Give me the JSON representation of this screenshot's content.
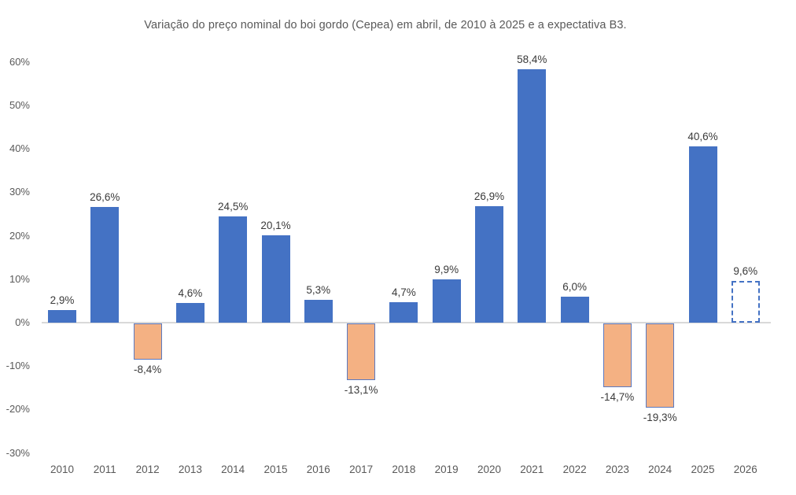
{
  "chart_data": {
    "type": "bar",
    "title": "Variação do preço nominal do boi gordo (Cepea) em abril, de 2010 à 2025 e a expectativa B3.",
    "categories": [
      "2010",
      "2011",
      "2012",
      "2013",
      "2014",
      "2015",
      "2016",
      "2017",
      "2018",
      "2019",
      "2020",
      "2021",
      "2022",
      "2023",
      "2024",
      "2025",
      "2026"
    ],
    "values": [
      2.9,
      26.6,
      -8.4,
      4.6,
      24.5,
      20.1,
      5.3,
      -13.1,
      4.7,
      9.9,
      26.9,
      58.4,
      6.0,
      -14.7,
      -19.3,
      40.6,
      9.6
    ],
    "value_labels": [
      "2,9%",
      "26,6%",
      "-8,4%",
      "4,6%",
      "24,5%",
      "20,1%",
      "5,3%",
      "-13,1%",
      "4,7%",
      "9,9%",
      "26,9%",
      "58,4%",
      "6,0%",
      "-14,7%",
      "-19,3%",
      "40,6%",
      "9,6%"
    ],
    "bar_types": [
      "positive",
      "positive",
      "negative",
      "positive",
      "positive",
      "positive",
      "positive",
      "negative",
      "positive",
      "positive",
      "positive",
      "positive",
      "positive",
      "negative",
      "negative",
      "positive",
      "forecast"
    ],
    "ylim": [
      -30,
      60
    ],
    "ytick_step": 10,
    "ytick_values": [
      60,
      50,
      40,
      30,
      20,
      10,
      0,
      -10,
      -20,
      -30
    ],
    "ytick_labels": [
      "60%",
      "50%",
      "40%",
      "30%",
      "20%",
      "10%",
      "0%",
      "-10%",
      "-20%",
      "-30%"
    ],
    "grid": false,
    "legend": null,
    "colors": {
      "positive_fill": "#4472C4",
      "negative_fill": "#F4B183",
      "negative_border": "#5B7AC1",
      "forecast_border": "#4472C4",
      "forecast_fill": "#FFFFFF",
      "baseline": "#D9D9D9",
      "axis_text": "#595959",
      "title_text": "#595959",
      "value_label_text": "#3A3A3A"
    }
  }
}
